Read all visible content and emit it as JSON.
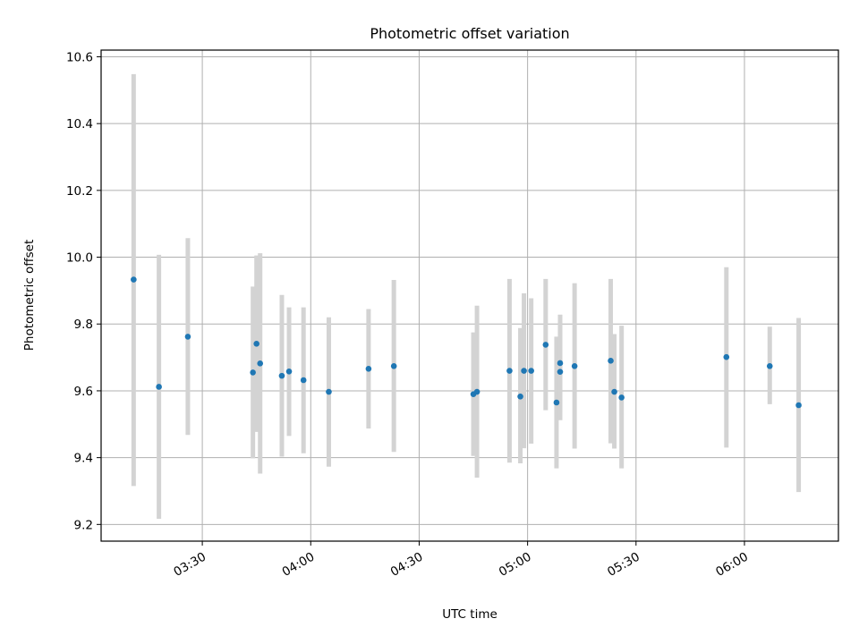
{
  "chart_data": {
    "type": "scatter",
    "title": "Photometric offset variation",
    "xlabel": "UTC time",
    "ylabel": "Photometric offset",
    "xlim": [
      "03:02",
      "06:26"
    ],
    "ylim": [
      9.15,
      10.62
    ],
    "x_ticks": [
      "03:30",
      "04:00",
      "04:30",
      "05:00",
      "05:30",
      "06:00"
    ],
    "y_ticks": [
      "9.2",
      "9.4",
      "9.6",
      "9.8",
      "10.0",
      "10.2",
      "10.4",
      "10.6"
    ],
    "grid": true,
    "error_bars": true,
    "colors": {
      "marker": "#1f77b4",
      "error_bar": "#d3d3d3",
      "grid": "#b0b0b0"
    },
    "points": [
      {
        "t": "03:11",
        "y": 9.933,
        "lo": 9.315,
        "hi": 10.548
      },
      {
        "t": "03:18",
        "y": 9.612,
        "lo": 9.217,
        "hi": 10.007
      },
      {
        "t": "03:26",
        "y": 9.762,
        "lo": 9.468,
        "hi": 10.057
      },
      {
        "t": "03:44",
        "y": 9.655,
        "lo": 9.398,
        "hi": 9.912
      },
      {
        "t": "03:45",
        "y": 9.741,
        "lo": 9.477,
        "hi": 10.005
      },
      {
        "t": "03:46",
        "y": 9.682,
        "lo": 9.352,
        "hi": 10.012
      },
      {
        "t": "03:52",
        "y": 9.645,
        "lo": 9.403,
        "hi": 9.887
      },
      {
        "t": "03:54",
        "y": 9.658,
        "lo": 9.465,
        "hi": 9.85
      },
      {
        "t": "03:58",
        "y": 9.632,
        "lo": 9.413,
        "hi": 9.85
      },
      {
        "t": "04:05",
        "y": 9.597,
        "lo": 9.373,
        "hi": 9.82
      },
      {
        "t": "04:16",
        "y": 9.666,
        "lo": 9.487,
        "hi": 9.845
      },
      {
        "t": "04:23",
        "y": 9.674,
        "lo": 9.417,
        "hi": 9.932
      },
      {
        "t": "04:45",
        "y": 9.59,
        "lo": 9.405,
        "hi": 9.775
      },
      {
        "t": "04:46",
        "y": 9.597,
        "lo": 9.34,
        "hi": 9.855
      },
      {
        "t": "04:55",
        "y": 9.66,
        "lo": 9.385,
        "hi": 9.935
      },
      {
        "t": "04:58",
        "y": 9.583,
        "lo": 9.383,
        "hi": 9.788
      },
      {
        "t": "04:59",
        "y": 9.66,
        "lo": 9.428,
        "hi": 9.892
      },
      {
        "t": "05:01",
        "y": 9.66,
        "lo": 9.442,
        "hi": 9.877
      },
      {
        "t": "05:05",
        "y": 9.738,
        "lo": 9.542,
        "hi": 9.935
      },
      {
        "t": "05:08",
        "y": 9.565,
        "lo": 9.368,
        "hi": 9.762
      },
      {
        "t": "05:09",
        "y": 9.683,
        "lo": 9.538,
        "hi": 9.828
      },
      {
        "t": "05:09",
        "y": 9.657,
        "lo": 9.512,
        "hi": 9.802
      },
      {
        "t": "05:13",
        "y": 9.674,
        "lo": 9.427,
        "hi": 9.922
      },
      {
        "t": "05:23",
        "y": 9.69,
        "lo": 9.443,
        "hi": 9.935
      },
      {
        "t": "05:24",
        "y": 9.597,
        "lo": 9.427,
        "hi": 9.77
      },
      {
        "t": "05:26",
        "y": 9.58,
        "lo": 9.368,
        "hi": 9.795
      },
      {
        "t": "05:55",
        "y": 9.701,
        "lo": 9.43,
        "hi": 9.97
      },
      {
        "t": "06:07",
        "y": 9.674,
        "lo": 9.56,
        "hi": 9.792
      },
      {
        "t": "06:15",
        "y": 9.557,
        "lo": 9.297,
        "hi": 9.818
      }
    ]
  }
}
